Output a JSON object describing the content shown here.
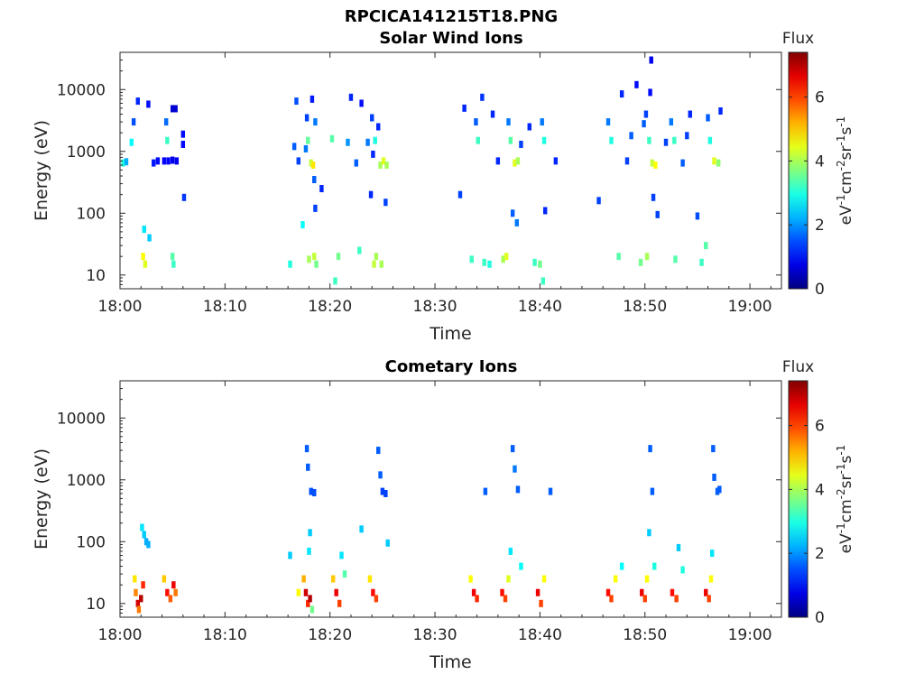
{
  "figure": {
    "filename": "RPCICA141215T18.PNG"
  },
  "panels": [
    {
      "title": "Solar Wind Ions",
      "xlabel": "Time",
      "ylabel": "Energy (eV)",
      "colorbar_title": "Flux",
      "colorbar_label": "eV-1cm-2sr-1s-1"
    },
    {
      "title": "Cometary Ions",
      "xlabel": "Time",
      "ylabel": "Energy (eV)",
      "colorbar_title": "Flux",
      "colorbar_label": "eV-1cm-2sr-1s-1"
    }
  ],
  "chart_data": [
    {
      "type": "heatmap",
      "title": "Solar Wind Ions",
      "xlabel": "Time",
      "ylabel": "Energy (eV)",
      "x_ticks": [
        "18:00",
        "18:10",
        "18:20",
        "18:30",
        "18:40",
        "18:50",
        "19:00"
      ],
      "x_range_minutes": [
        0,
        63
      ],
      "y_scale": "log",
      "y_ticks": [
        10,
        100,
        1000,
        10000
      ],
      "y_tick_labels": [
        "10",
        "100",
        "1000",
        "10000"
      ],
      "ylim": [
        6,
        40000
      ],
      "colorbar": {
        "title": "Flux",
        "label": "eV-1cm-2sr-1s-1",
        "range": [
          0,
          7.4
        ],
        "ticks": [
          0,
          2,
          4,
          6
        ],
        "colormap": "jet"
      },
      "points": [
        {
          "t": 0.3,
          "e": 650,
          "v": 3.0
        },
        {
          "t": 0.6,
          "e": 680,
          "v": 2.2
        },
        {
          "t": 1.1,
          "e": 1400,
          "v": 2.8
        },
        {
          "t": 1.3,
          "e": 3000,
          "v": 1.5
        },
        {
          "t": 1.7,
          "e": 6500,
          "v": 1.2
        },
        {
          "t": 2.2,
          "e": 20,
          "v": 4.6
        },
        {
          "t": 2.4,
          "e": 15,
          "v": 4.4
        },
        {
          "t": 2.3,
          "e": 55,
          "v": 2.6
        },
        {
          "t": 2.8,
          "e": 40,
          "v": 2.4
        },
        {
          "t": 2.7,
          "e": 5800,
          "v": 1.0
        },
        {
          "t": 3.2,
          "e": 650,
          "v": 1.1
        },
        {
          "t": 3.6,
          "e": 700,
          "v": 1.0
        },
        {
          "t": 4.2,
          "e": 700,
          "v": 0.9
        },
        {
          "t": 4.6,
          "e": 700,
          "v": 0.9
        },
        {
          "t": 5.0,
          "e": 720,
          "v": 0.8
        },
        {
          "t": 5.4,
          "e": 700,
          "v": 0.8
        },
        {
          "t": 4.5,
          "e": 1500,
          "v": 3.2
        },
        {
          "t": 4.4,
          "e": 3000,
          "v": 1.7
        },
        {
          "t": 5.0,
          "e": 4900,
          "v": 0.6
        },
        {
          "t": 5.3,
          "e": 4900,
          "v": 0.6
        },
        {
          "t": 5.0,
          "e": 20,
          "v": 3.4
        },
        {
          "t": 5.1,
          "e": 15,
          "v": 3.2
        },
        {
          "t": 6.0,
          "e": 1900,
          "v": 1.0
        },
        {
          "t": 6.0,
          "e": 1300,
          "v": 1.0
        },
        {
          "t": 6.1,
          "e": 180,
          "v": 1.3
        },
        {
          "t": 16.2,
          "e": 15,
          "v": 3.0
        },
        {
          "t": 16.6,
          "e": 1200,
          "v": 1.6
        },
        {
          "t": 16.8,
          "e": 6500,
          "v": 1.5
        },
        {
          "t": 17.0,
          "e": 700,
          "v": 1.4
        },
        {
          "t": 17.4,
          "e": 65,
          "v": 2.8
        },
        {
          "t": 17.7,
          "e": 1100,
          "v": 1.8
        },
        {
          "t": 17.8,
          "e": 3500,
          "v": 1.4
        },
        {
          "t": 17.9,
          "e": 1500,
          "v": 3.5
        },
        {
          "t": 18.0,
          "e": 18,
          "v": 4.0
        },
        {
          "t": 18.2,
          "e": 650,
          "v": 4.2
        },
        {
          "t": 18.4,
          "e": 600,
          "v": 4.8
        },
        {
          "t": 18.5,
          "e": 350,
          "v": 1.6
        },
        {
          "t": 18.6,
          "e": 120,
          "v": 1.4
        },
        {
          "t": 18.3,
          "e": 7000,
          "v": 1.1
        },
        {
          "t": 18.6,
          "e": 3000,
          "v": 1.8
        },
        {
          "t": 18.5,
          "e": 20,
          "v": 4.2
        },
        {
          "t": 18.7,
          "e": 15,
          "v": 3.6
        },
        {
          "t": 19.2,
          "e": 250,
          "v": 1.2
        },
        {
          "t": 20.2,
          "e": 1600,
          "v": 3.4
        },
        {
          "t": 20.5,
          "e": 8,
          "v": 3.2
        },
        {
          "t": 20.8,
          "e": 20,
          "v": 3.6
        },
        {
          "t": 21.7,
          "e": 1400,
          "v": 2.0
        },
        {
          "t": 22.0,
          "e": 7500,
          "v": 1.2
        },
        {
          "t": 22.5,
          "e": 650,
          "v": 1.6
        },
        {
          "t": 22.8,
          "e": 25,
          "v": 3.2
        },
        {
          "t": 23.0,
          "e": 6000,
          "v": 1.0
        },
        {
          "t": 23.6,
          "e": 1400,
          "v": 1.8
        },
        {
          "t": 24.0,
          "e": 3500,
          "v": 1.4
        },
        {
          "t": 24.2,
          "e": 15,
          "v": 4.2
        },
        {
          "t": 24.4,
          "e": 20,
          "v": 4.0
        },
        {
          "t": 24.6,
          "e": 2500,
          "v": 1.2
        },
        {
          "t": 24.8,
          "e": 600,
          "v": 4.0
        },
        {
          "t": 25.1,
          "e": 700,
          "v": 4.4
        },
        {
          "t": 25.4,
          "e": 600,
          "v": 4.0
        },
        {
          "t": 24.9,
          "e": 15,
          "v": 4.0
        },
        {
          "t": 25.3,
          "e": 150,
          "v": 1.4
        },
        {
          "t": 24.3,
          "e": 1500,
          "v": 3.0
        },
        {
          "t": 24.1,
          "e": 900,
          "v": 1.2
        },
        {
          "t": 23.9,
          "e": 200,
          "v": 1.2
        },
        {
          "t": 32.4,
          "e": 200,
          "v": 1.4
        },
        {
          "t": 32.8,
          "e": 5000,
          "v": 1.2
        },
        {
          "t": 33.5,
          "e": 18,
          "v": 3.2
        },
        {
          "t": 33.9,
          "e": 3000,
          "v": 1.6
        },
        {
          "t": 34.1,
          "e": 1500,
          "v": 3.2
        },
        {
          "t": 34.5,
          "e": 7500,
          "v": 1.3
        },
        {
          "t": 34.7,
          "e": 16,
          "v": 3.2
        },
        {
          "t": 35.2,
          "e": 15,
          "v": 3.0
        },
        {
          "t": 35.5,
          "e": 4000,
          "v": 1.2
        },
        {
          "t": 36.0,
          "e": 700,
          "v": 1.2
        },
        {
          "t": 36.5,
          "e": 18,
          "v": 4.0
        },
        {
          "t": 36.8,
          "e": 20,
          "v": 4.4
        },
        {
          "t": 37.0,
          "e": 3000,
          "v": 1.8
        },
        {
          "t": 37.2,
          "e": 1500,
          "v": 3.4
        },
        {
          "t": 37.6,
          "e": 650,
          "v": 4.4
        },
        {
          "t": 37.9,
          "e": 700,
          "v": 4.0
        },
        {
          "t": 37.4,
          "e": 100,
          "v": 1.6
        },
        {
          "t": 37.8,
          "e": 70,
          "v": 1.8
        },
        {
          "t": 38.2,
          "e": 1300,
          "v": 1.4
        },
        {
          "t": 39.0,
          "e": 2500,
          "v": 1.2
        },
        {
          "t": 39.5,
          "e": 16,
          "v": 3.2
        },
        {
          "t": 40.0,
          "e": 15,
          "v": 3.6
        },
        {
          "t": 40.2,
          "e": 3000,
          "v": 1.8
        },
        {
          "t": 40.4,
          "e": 1500,
          "v": 3.0
        },
        {
          "t": 40.3,
          "e": 8,
          "v": 3.2
        },
        {
          "t": 40.5,
          "e": 110,
          "v": 1.2
        },
        {
          "t": 41.5,
          "e": 700,
          "v": 1.2
        },
        {
          "t": 45.6,
          "e": 160,
          "v": 1.4
        },
        {
          "t": 46.5,
          "e": 3000,
          "v": 1.8
        },
        {
          "t": 46.8,
          "e": 1500,
          "v": 3.0
        },
        {
          "t": 47.5,
          "e": 20,
          "v": 3.4
        },
        {
          "t": 47.8,
          "e": 8500,
          "v": 1.2
        },
        {
          "t": 48.3,
          "e": 700,
          "v": 1.4
        },
        {
          "t": 48.7,
          "e": 1800,
          "v": 1.6
        },
        {
          "t": 49.2,
          "e": 12000,
          "v": 1.0
        },
        {
          "t": 49.6,
          "e": 16,
          "v": 3.6
        },
        {
          "t": 49.9,
          "e": 2800,
          "v": 1.6
        },
        {
          "t": 50.1,
          "e": 4000,
          "v": 1.4
        },
        {
          "t": 50.2,
          "e": 20,
          "v": 4.0
        },
        {
          "t": 50.4,
          "e": 1500,
          "v": 3.2
        },
        {
          "t": 50.5,
          "e": 9000,
          "v": 1.0
        },
        {
          "t": 50.6,
          "e": 30000,
          "v": 0.8
        },
        {
          "t": 50.7,
          "e": 650,
          "v": 4.2
        },
        {
          "t": 51.0,
          "e": 600,
          "v": 4.6
        },
        {
          "t": 50.8,
          "e": 180,
          "v": 1.4
        },
        {
          "t": 51.2,
          "e": 95,
          "v": 1.4
        },
        {
          "t": 52.0,
          "e": 1400,
          "v": 1.4
        },
        {
          "t": 52.5,
          "e": 3000,
          "v": 1.8
        },
        {
          "t": 52.8,
          "e": 1500,
          "v": 3.2
        },
        {
          "t": 52.9,
          "e": 18,
          "v": 3.4
        },
        {
          "t": 53.6,
          "e": 650,
          "v": 1.6
        },
        {
          "t": 54.0,
          "e": 1800,
          "v": 1.4
        },
        {
          "t": 54.3,
          "e": 4000,
          "v": 1.2
        },
        {
          "t": 55.0,
          "e": 90,
          "v": 1.5
        },
        {
          "t": 55.4,
          "e": 16,
          "v": 3.2
        },
        {
          "t": 55.8,
          "e": 30,
          "v": 3.4
        },
        {
          "t": 56.0,
          "e": 3500,
          "v": 1.6
        },
        {
          "t": 56.2,
          "e": 1500,
          "v": 3.0
        },
        {
          "t": 56.6,
          "e": 700,
          "v": 4.4
        },
        {
          "t": 57.0,
          "e": 650,
          "v": 3.8
        },
        {
          "t": 57.2,
          "e": 4500,
          "v": 1.2
        }
      ]
    },
    {
      "type": "heatmap",
      "title": "Cometary Ions",
      "xlabel": "Time",
      "ylabel": "Energy (eV)",
      "x_ticks": [
        "18:00",
        "18:10",
        "18:20",
        "18:30",
        "18:40",
        "18:50",
        "19:00"
      ],
      "x_range_minutes": [
        0,
        63
      ],
      "y_scale": "log",
      "y_ticks": [
        10,
        100,
        1000,
        10000
      ],
      "y_tick_labels": [
        "10",
        "100",
        "1000",
        "10000"
      ],
      "ylim": [
        6,
        40000
      ],
      "colorbar": {
        "title": "Flux",
        "label": "eV-1cm-2sr-1s-1",
        "range": [
          0,
          7.4
        ],
        "ticks": [
          0,
          2,
          4,
          6
        ],
        "colormap": "jet"
      },
      "points": [
        {
          "t": 1.4,
          "e": 25,
          "v": 4.8
        },
        {
          "t": 1.5,
          "e": 15,
          "v": 5.5
        },
        {
          "t": 1.7,
          "e": 10,
          "v": 6.8
        },
        {
          "t": 1.8,
          "e": 8,
          "v": 5.6
        },
        {
          "t": 2.0,
          "e": 12,
          "v": 7.0
        },
        {
          "t": 2.2,
          "e": 20,
          "v": 6.2
        },
        {
          "t": 2.1,
          "e": 170,
          "v": 2.6
        },
        {
          "t": 2.3,
          "e": 130,
          "v": 2.4
        },
        {
          "t": 2.5,
          "e": 100,
          "v": 2.2
        },
        {
          "t": 2.7,
          "e": 90,
          "v": 2.2
        },
        {
          "t": 4.2,
          "e": 25,
          "v": 5.0
        },
        {
          "t": 4.5,
          "e": 15,
          "v": 6.4
        },
        {
          "t": 4.8,
          "e": 12,
          "v": 5.8
        },
        {
          "t": 5.1,
          "e": 20,
          "v": 6.6
        },
        {
          "t": 5.3,
          "e": 15,
          "v": 5.6
        },
        {
          "t": 16.2,
          "e": 60,
          "v": 2.4
        },
        {
          "t": 17.0,
          "e": 15,
          "v": 4.6
        },
        {
          "t": 17.5,
          "e": 25,
          "v": 5.2
        },
        {
          "t": 17.7,
          "e": 15,
          "v": 6.8
        },
        {
          "t": 17.9,
          "e": 10,
          "v": 6.2
        },
        {
          "t": 18.1,
          "e": 12,
          "v": 7.0
        },
        {
          "t": 18.3,
          "e": 8,
          "v": 3.6
        },
        {
          "t": 17.8,
          "e": 3200,
          "v": 1.6
        },
        {
          "t": 17.9,
          "e": 1600,
          "v": 1.6
        },
        {
          "t": 18.2,
          "e": 650,
          "v": 1.5
        },
        {
          "t": 18.5,
          "e": 620,
          "v": 1.5
        },
        {
          "t": 18.1,
          "e": 140,
          "v": 2.4
        },
        {
          "t": 18.0,
          "e": 70,
          "v": 2.6
        },
        {
          "t": 20.3,
          "e": 25,
          "v": 5.0
        },
        {
          "t": 20.6,
          "e": 15,
          "v": 6.6
        },
        {
          "t": 20.9,
          "e": 10,
          "v": 6.0
        },
        {
          "t": 21.1,
          "e": 60,
          "v": 2.6
        },
        {
          "t": 21.4,
          "e": 30,
          "v": 3.4
        },
        {
          "t": 23.0,
          "e": 160,
          "v": 2.4
        },
        {
          "t": 23.8,
          "e": 25,
          "v": 4.8
        },
        {
          "t": 24.1,
          "e": 15,
          "v": 6.4
        },
        {
          "t": 24.4,
          "e": 12,
          "v": 6.0
        },
        {
          "t": 24.6,
          "e": 3000,
          "v": 1.6
        },
        {
          "t": 24.8,
          "e": 1200,
          "v": 1.6
        },
        {
          "t": 25.0,
          "e": 650,
          "v": 1.4
        },
        {
          "t": 25.3,
          "e": 600,
          "v": 1.4
        },
        {
          "t": 25.5,
          "e": 95,
          "v": 2.4
        },
        {
          "t": 33.4,
          "e": 25,
          "v": 4.6
        },
        {
          "t": 33.7,
          "e": 15,
          "v": 6.6
        },
        {
          "t": 34.0,
          "e": 12,
          "v": 6.2
        },
        {
          "t": 34.8,
          "e": 650,
          "v": 1.6
        },
        {
          "t": 36.4,
          "e": 15,
          "v": 6.4
        },
        {
          "t": 36.7,
          "e": 12,
          "v": 6.0
        },
        {
          "t": 37.0,
          "e": 25,
          "v": 4.4
        },
        {
          "t": 37.2,
          "e": 70,
          "v": 2.6
        },
        {
          "t": 37.4,
          "e": 3200,
          "v": 1.6
        },
        {
          "t": 37.6,
          "e": 1500,
          "v": 1.8
        },
        {
          "t": 37.9,
          "e": 700,
          "v": 1.6
        },
        {
          "t": 38.2,
          "e": 40,
          "v": 2.8
        },
        {
          "t": 39.8,
          "e": 15,
          "v": 6.6
        },
        {
          "t": 40.1,
          "e": 10,
          "v": 6.0
        },
        {
          "t": 40.4,
          "e": 25,
          "v": 4.6
        },
        {
          "t": 41.0,
          "e": 650,
          "v": 1.6
        },
        {
          "t": 46.5,
          "e": 15,
          "v": 6.4
        },
        {
          "t": 46.8,
          "e": 12,
          "v": 6.0
        },
        {
          "t": 47.2,
          "e": 25,
          "v": 4.6
        },
        {
          "t": 47.8,
          "e": 40,
          "v": 2.8
        },
        {
          "t": 49.7,
          "e": 15,
          "v": 6.6
        },
        {
          "t": 50.0,
          "e": 12,
          "v": 6.0
        },
        {
          "t": 50.2,
          "e": 25,
          "v": 4.6
        },
        {
          "t": 50.5,
          "e": 3200,
          "v": 1.6
        },
        {
          "t": 50.7,
          "e": 650,
          "v": 1.6
        },
        {
          "t": 50.4,
          "e": 140,
          "v": 2.4
        },
        {
          "t": 50.9,
          "e": 40,
          "v": 3.0
        },
        {
          "t": 52.6,
          "e": 15,
          "v": 6.4
        },
        {
          "t": 53.0,
          "e": 12,
          "v": 6.0
        },
        {
          "t": 53.2,
          "e": 80,
          "v": 2.4
        },
        {
          "t": 53.6,
          "e": 35,
          "v": 3.0
        },
        {
          "t": 55.8,
          "e": 15,
          "v": 6.6
        },
        {
          "t": 56.1,
          "e": 12,
          "v": 6.0
        },
        {
          "t": 56.3,
          "e": 25,
          "v": 4.6
        },
        {
          "t": 56.5,
          "e": 3200,
          "v": 1.6
        },
        {
          "t": 56.6,
          "e": 1100,
          "v": 1.6
        },
        {
          "t": 56.9,
          "e": 650,
          "v": 1.6
        },
        {
          "t": 57.1,
          "e": 700,
          "v": 1.6
        },
        {
          "t": 56.4,
          "e": 65,
          "v": 2.6
        }
      ]
    }
  ]
}
